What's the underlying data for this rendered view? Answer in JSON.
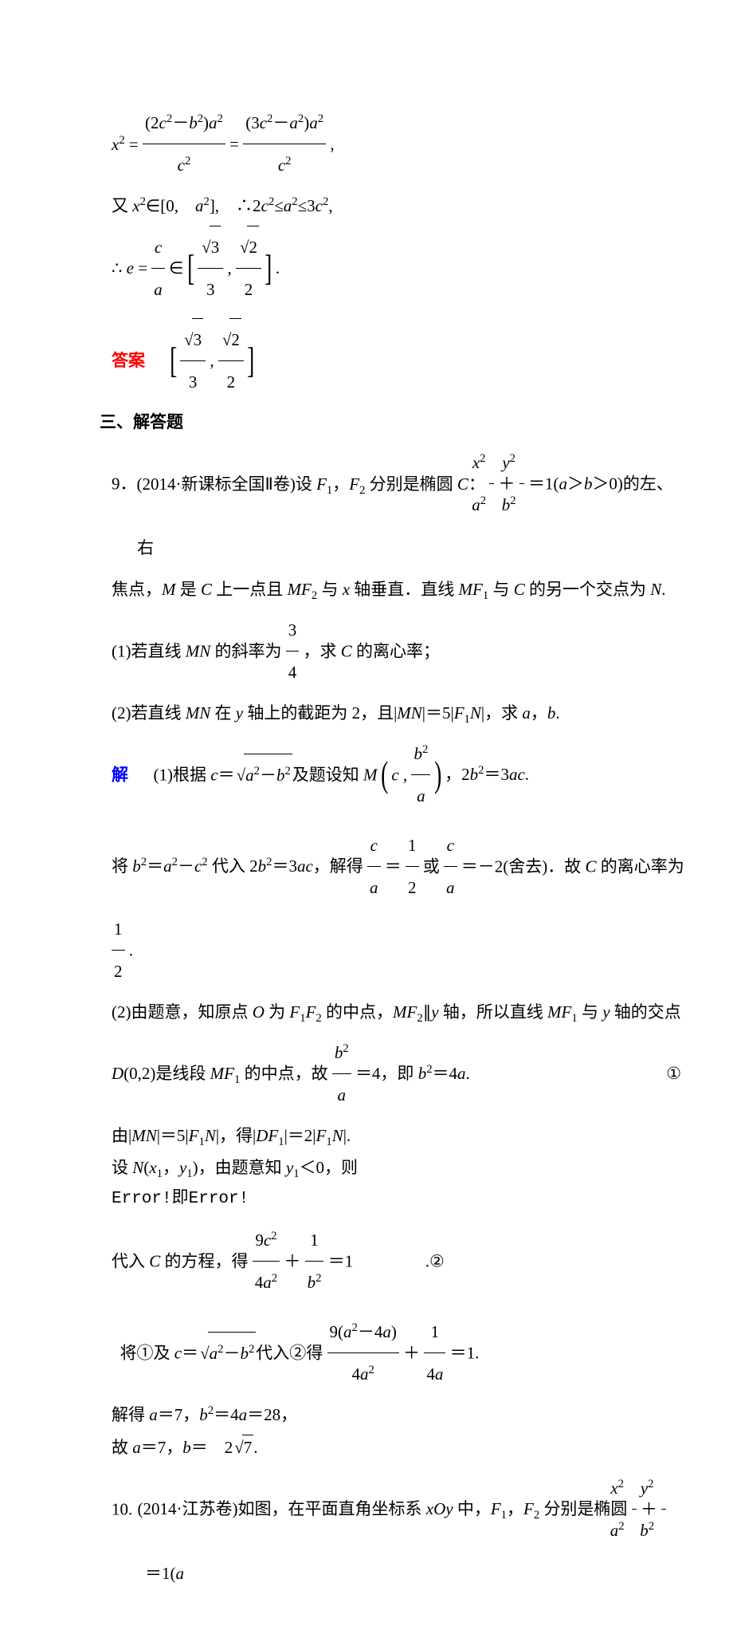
{
  "topDeriv": {
    "l1a_num": "(2<i>c</i><sup>2</sup>－<i>b</i><sup>2</sup>)<i>a</i><sup>2</sup>",
    "l1a_den": "<i>c</i><sup>2</sup>",
    "l1b_num": "(3<i>c</i><sup>2</sup>－<i>a</i><sup>2</sup>)<i>a</i><sup>2</sup>",
    "l1b_den": "<i>c</i><sup>2</sup>",
    "l2": "又 <i>x</i><sup>2</sup>∈[0,　<i>a</i><sup>2</sup>],　∴2<i>c</i><sup>2</sup>≤<i>a</i><sup>2</sup>≤3<i>c</i><sup>2</sup>,",
    "l3_left": "∴ <i>e</i> = ",
    "l3_ca_num": "<i>c</i>",
    "l3_ca_den": "<i>a</i>",
    "l3_in": " ∈ ",
    "r3_num": "3",
    "r2_num": "2",
    "sqrt3": "3",
    "sqrt2": "2",
    "ansLabel": "答案"
  },
  "section3": "三、解答题",
  "q9": {
    "label": "9．",
    "stem1_a": "(2014·新课标全国Ⅱ卷)设 <i>F</i><sub>1</sub>，<i>F</i><sub>2</sub> 分别是椭圆 <i>C</i>：",
    "stem1_b": "＝1(<i>a</i>＞<i>b</i>＞0)的左、右",
    "ell_x_num": "<i>x</i><sup>2</sup>",
    "ell_x_den": "<i>a</i><sup>2</sup>",
    "ell_y_num": "<i>y</i><sup>2</sup>",
    "ell_y_den": "<i>b</i><sup>2</sup>",
    "stem2": "焦点，<i>M</i> 是 <i>C</i> 上一点且 <i>MF</i><sub>2</sub> 与 <i>x</i> 轴垂直．直线 <i>MF</i><sub>1</sub> 与 <i>C</i> 的另一个交点为 <i>N</i>.",
    "p1a": "(1)若直线 <i>MN</i> 的斜率为",
    "p1_num": "3",
    "p1_den": "4",
    "p1b": "，求 <i>C</i> 的离心率；",
    "p2": "(2)若直线 <i>MN</i> 在 <i>y</i> 轴上的截距为 2，且|<i>MN</i>|＝5|<i>F</i><sub>1</sub><i>N</i>|，求 <i>a</i>，<i>b</i>.",
    "solLabel": "解",
    "s1a": "(1)根据 <i>c</i>＝",
    "s1_sqrt": "<i>a</i><sup>2</sup>－<i>b</i><sup>2</sup>",
    "s1b": "及题设知 <i>M</i>",
    "s1_m1": "<i>c</i> ,",
    "s1_m2_num": "<i>b</i><sup>2</sup>",
    "s1_m2_den": "<i>a</i>",
    "s1c": "，2<i>b</i><sup>2</sup>＝3<i>ac</i>.",
    "s2a": "将 <i>b</i><sup>2</sup>＝<i>a</i><sup>2</sup>－<i>c</i><sup>2</sup> 代入 2<i>b</i><sup>2</sup>＝3<i>ac</i>，解得",
    "s2_f1num": "<i>c</i>",
    "s2_f1den": "<i>a</i>",
    "s2_eq1": "＝",
    "s2_f2num": "1",
    "s2_f2den": "2",
    "s2_or": "或",
    "s2_f3num": "<i>c</i>",
    "s2_f3den": "<i>a</i>",
    "s2_eq2": "＝－2(舍去)．故 <i>C</i> 的离心率为",
    "s2_f4num": "1",
    "s2_f4den": "2",
    "s2_end": ".",
    "s3": "(2)由题意，知原点 <i>O</i> 为 <i>F</i><sub>1</sub><i>F</i><sub>2</sub> 的中点，<i>MF</i><sub>2</sub>∥<i>y</i> 轴，所以直线 <i>MF</i><sub>1</sub> 与 <i>y</i> 轴的交点",
    "s4a": "<i>D</i>(0,2)是线段 <i>MF</i><sub>1</sub> 的中点，故",
    "s4_num": "<i>b</i><sup>2</sup>",
    "s4_den": "<i>a</i>",
    "s4b": "＝4，即 <i>b</i><sup>2</sup>＝4<i>a</i>.",
    "s4_circ": "①",
    "s5": "由|<i>MN</i>|＝5|<i>F</i><sub>1</sub><i>N</i>|，得|<i>DF</i><sub>1</sub>|＝2|<i>F</i><sub>1</sub><i>N</i>|.",
    "s6": "设 <i>N</i>(<i>x</i><sub>1</sub>，<i>y</i><sub>1</sub>)，由题意知 <i>y</i><sub>1</sub>＜0，则",
    "s7": "Error!即Error!",
    "s8a": "代入 <i>C</i> 的方程，得",
    "s8_f1num": "9<i>c</i><sup>2</sup>",
    "s8_f1den": "4<i>a</i><sup>2</sup>",
    "s8_plus": "＋",
    "s8_f2num": "1",
    "s8_f2den": "<i>b</i><sup>2</sup>",
    "s8b": "＝1",
    "s8_circ": ".②",
    "s9a": "将①及 <i>c</i>＝",
    "s9_sqrt": "<i>a</i><sup>2</sup>－<i>b</i><sup>2</sup>",
    "s9b": "代入②得",
    "s9_f1num": "9(<i>a</i><sup>2</sup>－4<i>a</i>)",
    "s9_f1den": "4<i>a</i><sup>2</sup>",
    "s9_plus": "＋",
    "s9_f2num": "1",
    "s9_f2den": "4<i>a</i>",
    "s9c": "＝1.",
    "s10": "解得 <i>a</i>＝7，<i>b</i><sup>2</sup>＝4<i>a</i>＝28，",
    "s11a": "故 <i>a</i>＝7，<i>b</i>＝　2",
    "s11_sqrt": "7",
    "s11b": "."
  },
  "q10": {
    "label": "10.",
    "stem_a": "(2014·江苏卷)如图，在平面直角坐标系 <i>xOy</i> 中，<i>F</i><sub>1</sub>，<i>F</i><sub>2</sub> 分别是椭圆",
    "ell_x_num": "<i>x</i><sup>2</sup>",
    "ell_x_den": "<i>a</i><sup>2</sup>",
    "ell_y_num": "<i>y</i><sup>2</sup>",
    "ell_y_den": "<i>b</i><sup>2</sup>",
    "stem_b": "＝1(<i>a</i>"
  },
  "colors": {
    "red": "#ff0000",
    "blue": "#0000ff",
    "text": "#000000",
    "bg": "#ffffff"
  }
}
